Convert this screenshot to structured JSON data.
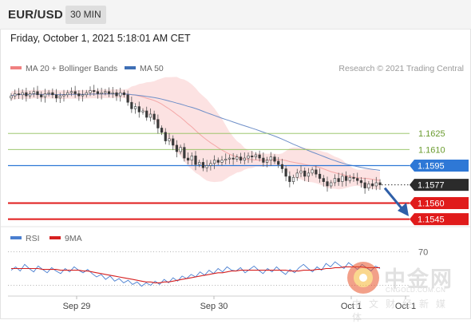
{
  "header": {
    "symbol": "EUR/USD",
    "timeframe": "30 MIN"
  },
  "datetime": "Friday, October 1, 2021 5:18:01 AM CET",
  "legend": {
    "bollinger": {
      "label": "MA 20 + Bollinger Bands",
      "color": "#f08080"
    },
    "ma50": {
      "label": "MA 50",
      "color": "#3f6fb5"
    },
    "research": "Research © 2021 Trading Central"
  },
  "rsi_legend": {
    "rsi": {
      "label": "RSI",
      "color": "#4a7fd0"
    },
    "ma9": {
      "label": "9MA",
      "color": "#d62020"
    }
  },
  "watermark": {
    "cn": "中金网",
    "en": "CNGOLD.COM.CN",
    "sub": "中文财经新媒体"
  },
  "chart_data": [
    {
      "type": "candlestick",
      "title": "",
      "x_ticks": [
        "Sep 29",
        "Sep 30",
        "Oct 1",
        "Oct 1"
      ],
      "ylim": [
        1.1541,
        1.1675
      ],
      "levels": [
        {
          "value": 1.1625,
          "label": "1.1625",
          "color": "#8fbf5a",
          "style": "thin"
        },
        {
          "value": 1.161,
          "label": "1.1610",
          "color": "#8fbf5a",
          "style": "thin"
        },
        {
          "value": 1.1595,
          "label": "1.1595",
          "color": "#2e78d6",
          "style": "line",
          "tag": "blue"
        },
        {
          "value": 1.1577,
          "label": "1.1577",
          "color": "#333333",
          "style": "dotted",
          "tag": "dark"
        },
        {
          "value": 1.156,
          "label": "1.1560",
          "color": "#e01b1b",
          "style": "thick",
          "tag": "red"
        },
        {
          "value": 1.1545,
          "label": "1.1545",
          "color": "#e01b1b",
          "style": "thick",
          "tag": "red"
        }
      ],
      "close_series": [
        1.166,
        1.1662,
        1.1661,
        1.1663,
        1.166,
        1.1662,
        1.1664,
        1.1661,
        1.1659,
        1.1662,
        1.1663,
        1.1661,
        1.1658,
        1.166,
        1.1661,
        1.1663,
        1.1664,
        1.1662,
        1.166,
        1.1661,
        1.1663,
        1.1665,
        1.1664,
        1.1662,
        1.1663,
        1.1664,
        1.1662,
        1.1663,
        1.166,
        1.1663,
        1.1661,
        1.1654,
        1.1648,
        1.165,
        1.1645,
        1.1646,
        1.164,
        1.1643,
        1.1638,
        1.163,
        1.1626,
        1.1618,
        1.162,
        1.1614,
        1.1608,
        1.1612,
        1.1602,
        1.16,
        1.1604,
        1.1596,
        1.1598,
        1.1593,
        1.1595,
        1.1597,
        1.16,
        1.1598,
        1.16,
        1.1601,
        1.1602,
        1.1601,
        1.1603,
        1.16,
        1.1602,
        1.1604,
        1.1603,
        1.1605,
        1.1602,
        1.1598,
        1.16,
        1.1603,
        1.1599,
        1.1596,
        1.1592,
        1.1585,
        1.158,
        1.1584,
        1.1588,
        1.159,
        1.1585,
        1.1588,
        1.1591,
        1.1587,
        1.1583,
        1.158,
        1.1576,
        1.1579,
        1.1583,
        1.158,
        1.1585,
        1.1581,
        1.1584,
        1.1583,
        1.1581,
        1.1579,
        1.1574,
        1.1578,
        1.1576,
        1.1579,
        1.1577
      ],
      "bollinger": {
        "color": "#f4a8a8"
      },
      "ma50": {
        "color": "#6f8fc8"
      },
      "forecast_arrow": {
        "color": "#2f5fa8"
      }
    },
    {
      "type": "line",
      "title": "",
      "ylim": [
        20,
        80
      ],
      "y_levels": [
        70,
        30
      ],
      "y_tick_labels": [
        "70"
      ],
      "series": [
        {
          "name": "RSI",
          "color": "#4a7fd0",
          "values": [
            48,
            52,
            47,
            55,
            50,
            46,
            53,
            49,
            45,
            51,
            47,
            44,
            50,
            46,
            52,
            48,
            45,
            49,
            44,
            40,
            43,
            37,
            41,
            35,
            38,
            33,
            36,
            31,
            34,
            29,
            33,
            30,
            35,
            31,
            37,
            33,
            39,
            35,
            41,
            38,
            43,
            40,
            46,
            42,
            48,
            44,
            50,
            46,
            52,
            48,
            47,
            51,
            45,
            49,
            53,
            48,
            44,
            50,
            46,
            52,
            47,
            43,
            49,
            45,
            51,
            55,
            50,
            46,
            52,
            48,
            56,
            52,
            58,
            54,
            50,
            57,
            53,
            49,
            55,
            51,
            47,
            53,
            50
          ]
        },
        {
          "name": "9MA",
          "color": "#d62020",
          "values": [
            50,
            50,
            50,
            50,
            50,
            50,
            50,
            49,
            49,
            49,
            49,
            48,
            48,
            48,
            48,
            48,
            47,
            47,
            46,
            45,
            44,
            43,
            42,
            41,
            40,
            39,
            38,
            37,
            36,
            35,
            34,
            34,
            33,
            33,
            34,
            34,
            35,
            36,
            37,
            38,
            39,
            40,
            41,
            42,
            43,
            44,
            45,
            45,
            46,
            47,
            47,
            48,
            48,
            48,
            48,
            48,
            48,
            48,
            48,
            48,
            48,
            48,
            47,
            47,
            47,
            48,
            48,
            48,
            49,
            49,
            50,
            50,
            51,
            51,
            52,
            52,
            52,
            52,
            52,
            51,
            51,
            51,
            51
          ]
        }
      ]
    }
  ]
}
